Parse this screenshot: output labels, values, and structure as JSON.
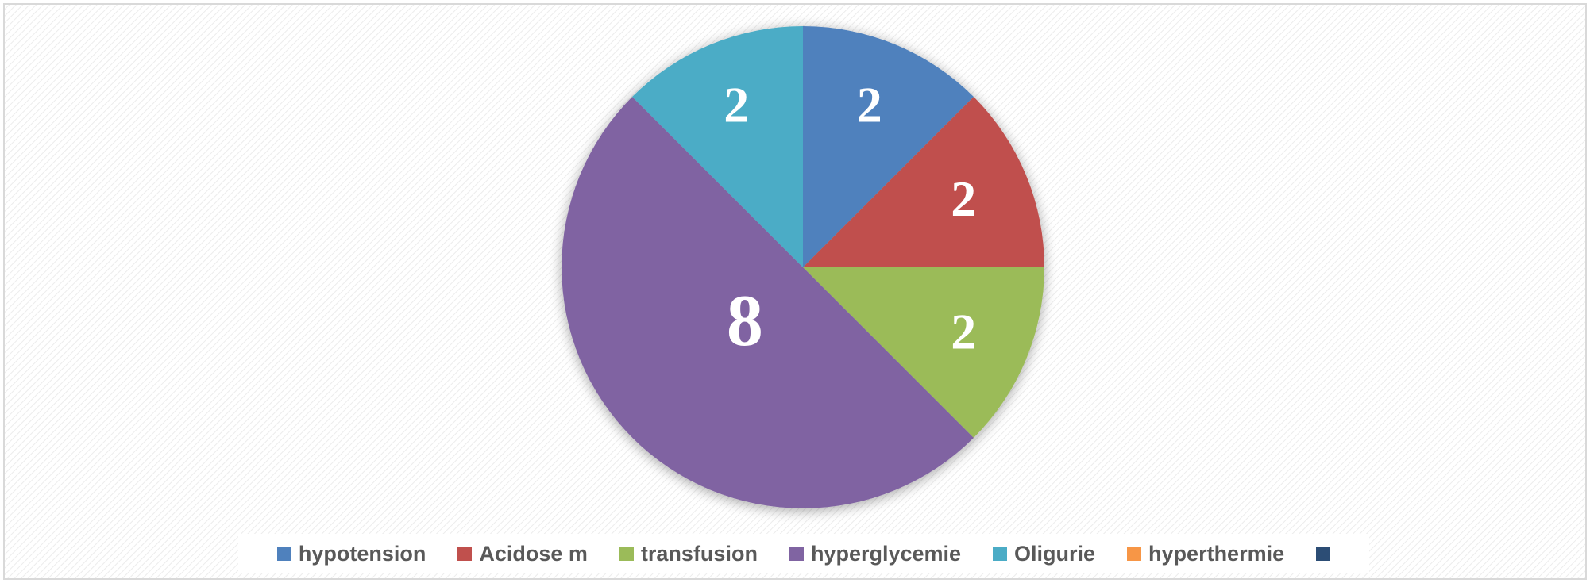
{
  "chart_data": {
    "type": "pie",
    "categories": [
      "hypotension",
      "Acidose m",
      "transfusion",
      "hyperglycemie",
      "Oligurie",
      "hyperthermie",
      null
    ],
    "values": [
      2,
      2,
      2,
      8,
      2,
      0,
      0
    ],
    "colors": [
      "#4f81bd",
      "#c0504d",
      "#9bbb59",
      "#8064a2",
      "#4bacc6",
      "#f79646",
      "#2c4d75"
    ],
    "legend": "bottom"
  }
}
